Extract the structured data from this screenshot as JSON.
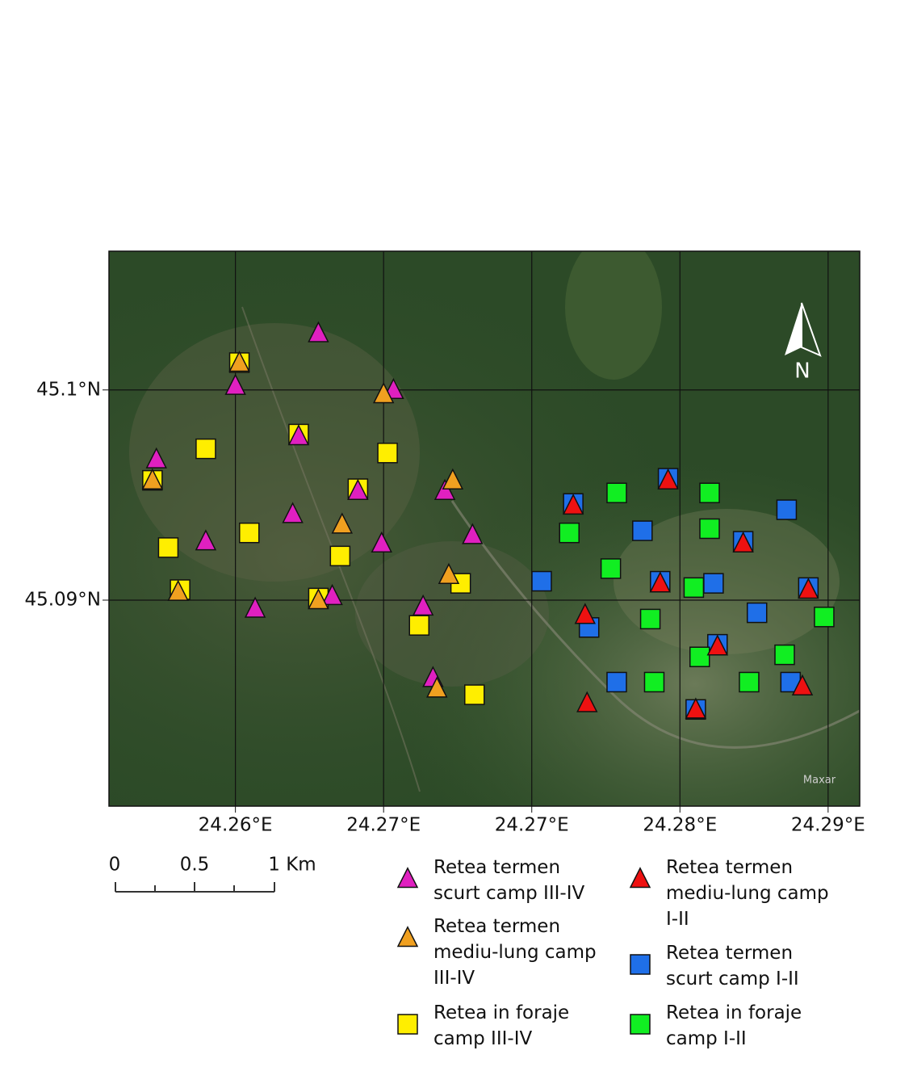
{
  "chart_data": {
    "type": "scatter",
    "xlim": [
      24.2536,
      24.2916
    ],
    "ylim": [
      45.0802,
      45.1066
    ],
    "xticks": [
      {
        "value": 24.26,
        "label": "24.26°E"
      },
      {
        "value": 24.2675,
        "label": "24.27°E"
      },
      {
        "value": 24.275,
        "label": "24.27°E"
      },
      {
        "value": 24.2825,
        "label": "24.28°E"
      },
      {
        "value": 24.29,
        "label": "24.29°E"
      }
    ],
    "yticks": [
      {
        "value": 45.09,
        "label": "45.09°N"
      },
      {
        "value": 45.1,
        "label": "45.1°N"
      }
    ],
    "grid": true,
    "north_arrow": "N",
    "attribution": "Maxar",
    "scale_bar": {
      "labels": [
        "0",
        "0.5",
        "1 Km"
      ]
    },
    "series": [
      {
        "name": "Retea termen scurt camp III-IV",
        "color": "#e020c0",
        "marker": "triangle",
        "x": [
          24.2642,
          24.26,
          24.268,
          24.256,
          24.2632,
          24.2706,
          24.2662,
          24.2629,
          24.2585,
          24.2674,
          24.272,
          24.2649,
          24.261,
          24.2695,
          24.27
        ],
        "y": [
          45.1027,
          45.1002,
          45.1,
          45.0967,
          45.0978,
          45.0952,
          45.0952,
          45.0941,
          45.0928,
          45.0927,
          45.0931,
          45.0902,
          45.0896,
          45.0897,
          45.0863
        ]
      },
      {
        "name": "Retea termen mediu-lung camp III-IV",
        "color": "#f0a020",
        "marker": "triangle",
        "x": [
          24.2602,
          24.2675,
          24.2558,
          24.271,
          24.2654,
          24.2708,
          24.2571,
          24.2642,
          24.2702
        ],
        "y": [
          45.1013,
          45.0998,
          45.0957,
          45.0957,
          45.0936,
          45.0912,
          45.0904,
          45.09,
          45.0858
        ]
      },
      {
        "name": "Retea in foraje camp III-IV",
        "color": "#ffee00",
        "marker": "square",
        "x": [
          24.2602,
          24.2585,
          24.2632,
          24.2677,
          24.2558,
          24.2662,
          24.2607,
          24.2566,
          24.2653,
          24.2572,
          24.2714,
          24.2642,
          24.2693,
          24.2721
        ],
        "y": [
          45.1013,
          45.0972,
          45.0979,
          45.097,
          45.0957,
          45.0953,
          45.0932,
          45.0925,
          45.0921,
          45.0905,
          45.0908,
          45.0901,
          45.0888,
          45.0855
        ]
      },
      {
        "name": "Retea termen mediu-lung camp I-II",
        "color": "#ee1111",
        "marker": "triangle",
        "x": [
          24.2771,
          24.2819,
          24.2857,
          24.2815,
          24.289,
          24.2777,
          24.2844,
          24.2887,
          24.2778,
          24.2833
        ],
        "y": [
          45.0945,
          45.0957,
          45.0927,
          45.0908,
          45.0905,
          45.0893,
          45.0878,
          45.0859,
          45.0851,
          45.0848
        ]
      },
      {
        "name": "Retea termen scurt camp I-II",
        "color": "#1f6fe8",
        "marker": "square",
        "x": [
          24.2771,
          24.2819,
          24.2879,
          24.2806,
          24.2857,
          24.2755,
          24.2815,
          24.2842,
          24.289,
          24.2779,
          24.2864,
          24.2844,
          24.2793,
          24.2881,
          24.2833
        ],
        "y": [
          45.0946,
          45.0958,
          45.0943,
          45.0933,
          45.0928,
          45.0909,
          45.0909,
          45.0908,
          45.0906,
          45.0887,
          45.0894,
          45.0879,
          45.0861,
          45.0861,
          45.0848
        ]
      },
      {
        "name": "Retea in foraje camp I-II",
        "color": "#11ee22",
        "marker": "square",
        "x": [
          24.2793,
          24.284,
          24.2769,
          24.284,
          24.279,
          24.2832,
          24.281,
          24.2898,
          24.2835,
          24.2878,
          24.2812,
          24.286
        ],
        "y": [
          45.0951,
          45.0951,
          45.0932,
          45.0934,
          45.0915,
          45.0906,
          45.0891,
          45.0892,
          45.0873,
          45.0874,
          45.0861,
          45.0861
        ]
      }
    ]
  }
}
